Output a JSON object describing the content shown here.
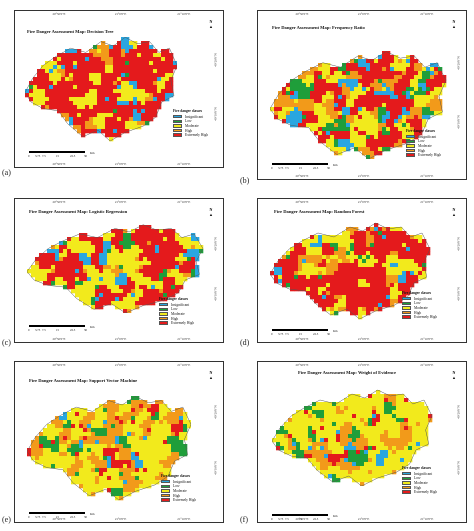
{
  "panels": [
    {
      "letter": "(a)",
      "title": "Fire Danger Assessment Map: Decision Tree",
      "legend_title": "Fire danger classes",
      "classes": [
        "Insignificant",
        "Low",
        "Moderate",
        "High",
        "Extremely High"
      ],
      "scale_labels": [
        "0",
        "3.75",
        "7.5",
        "15",
        "22.5",
        "30"
      ],
      "scale_unit": "Km"
    },
    {
      "letter": "(b)",
      "title": "Fire Danger Assessment Map: Frequency Ratio",
      "legend_title": "Fire danger classes",
      "classes": [
        "Insignificant",
        "Low",
        "Moderate",
        "High",
        "Extremely High"
      ],
      "scale_labels": [
        "0",
        "3.75",
        "7.5",
        "15",
        "22.5",
        "30"
      ],
      "scale_unit": "Km"
    },
    {
      "letter": "(c)",
      "title": "Fire Danger Assessment Map: Logistic Regression",
      "legend_title": "Fire danger classes",
      "classes": [
        "Insignificant",
        "Low",
        "Moderate",
        "High",
        "Extremely High"
      ],
      "scale_labels": [
        "0",
        "3.75",
        "7.5",
        "15",
        "22.5",
        "30"
      ],
      "scale_unit": "Km"
    },
    {
      "letter": "(d)",
      "title": "Fire Danger Assessment Map: Random Forest",
      "legend_title": "Fire danger classes",
      "classes": [
        "Insignificant",
        "Low",
        "Moderate",
        "High",
        "Extremely High"
      ],
      "scale_labels": [
        "0",
        "3.75",
        "7.5",
        "15",
        "22.5",
        "30"
      ],
      "scale_unit": "Km"
    },
    {
      "letter": "(e)",
      "title": "Fire Danger Assessment Map: Support Vector Machine",
      "legend_title": "Fire danger classes",
      "classes": [
        "Insignificant",
        "Low",
        "Moderate",
        "High",
        "Extremely High"
      ],
      "scale_labels": [
        "0",
        "3.75",
        "7.5",
        "15",
        "22.5",
        "30"
      ],
      "scale_unit": "Km"
    },
    {
      "letter": "(f)",
      "title": "Fire Danger Assessment Map: Weight of Evidence",
      "legend_title": "Fire danger classes",
      "classes": [
        "Insignificant",
        "Low",
        "Moderate",
        "High",
        "Extremely High"
      ],
      "scale_labels": [
        "0",
        "3.75",
        "7.5",
        "15",
        "22.5",
        "30"
      ],
      "scale_unit": "Km"
    }
  ],
  "class_colors": [
    "#2aa6e0",
    "#1f9e3a",
    "#f2ea1c",
    "#f29a1a",
    "#e41a1c"
  ],
  "ticks_x": [
    "20°50'0\"E",
    "21°0'0\"E",
    "21°10'0\"E"
  ],
  "ticks_y": [
    "40°20'0\"N",
    "40°10'0\"N"
  ],
  "north_label": "N"
}
